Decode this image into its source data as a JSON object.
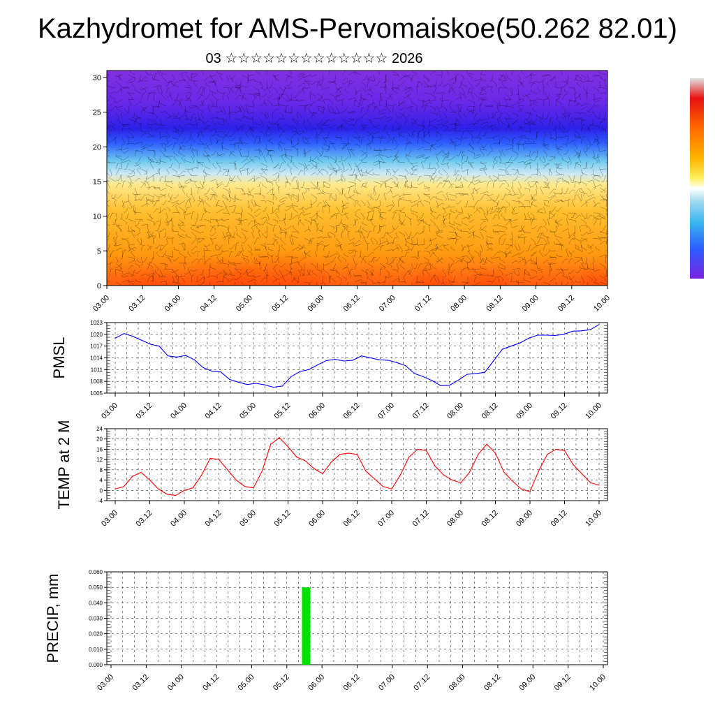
{
  "header": {
    "title": "Kazhydromet for AMS-Pervomaiskoe(50.262 82.01)",
    "subtitle": "03 ☆☆☆☆☆☆☆☆☆☆☆☆☆ 2026"
  },
  "colors": {
    "pmsl_line": "#0000ff",
    "temp_line": "#ff0000",
    "precip_bar": "#00e000",
    "colorbar": [
      "#e0e0e0",
      "#e81010",
      "#ff6a00",
      "#ffb400",
      "#ffe050",
      "#ffffff",
      "#9ad8f0",
      "#3ab4f0",
      "#2a60ff",
      "#3c1ce0",
      "#7a20e0"
    ]
  },
  "x_tick_labels": [
    "03.00",
    "03.12",
    "04.00",
    "04.12",
    "05.00",
    "05.12",
    "06.00",
    "06.12",
    "07.00",
    "07.12",
    "08.00",
    "08.12",
    "09.00",
    "09.12",
    "10.00"
  ],
  "chart_data": [
    {
      "type": "heatmap",
      "title": "",
      "xlabel": "",
      "ylabel": "",
      "x_categories": [
        "03.00",
        "03.12",
        "04.00",
        "04.12",
        "05.00",
        "05.12",
        "06.00",
        "06.12",
        "07.00",
        "07.12",
        "08.00",
        "08.12",
        "09.00",
        "09.12",
        "10.00"
      ],
      "yticks": [
        0,
        5,
        10,
        15,
        20,
        25,
        30
      ],
      "ylim": [
        0,
        31
      ],
      "description_hint": "shaded cross-section with wind barbs"
    },
    {
      "type": "line",
      "ylabel": "PMSL",
      "yticks": [
        1005,
        1008,
        1011,
        1014,
        1017,
        1020,
        1023
      ],
      "ylim": [
        1005,
        1023
      ],
      "series": [
        {
          "values": [
            1019,
            1020.2,
            1019.5,
            1018.5,
            1017.5,
            1017,
            1014.5,
            1014.2,
            1014.6,
            1013.5,
            1011.5,
            1010.6,
            1010.4,
            1008.5,
            1007.8,
            1007.2,
            1007.5,
            1007.1,
            1006.5,
            1006.8,
            1009.2,
            1010.5,
            1011,
            1012.2,
            1013.3,
            1013.6,
            1013.2,
            1013.4,
            1014.5,
            1014,
            1013.5,
            1013.4,
            1012.8,
            1012,
            1010,
            1009.2,
            1008.2,
            1006.9,
            1007,
            1008.3,
            1009.8,
            1010,
            1010.3,
            1013.2,
            1016.2,
            1017,
            1017.8,
            1019,
            1019.8,
            1019.8,
            1019.7,
            1020,
            1020.8,
            1020.9,
            1021.2,
            1022.5
          ]
        }
      ]
    },
    {
      "type": "line",
      "ylabel": "TEMP at 2 M",
      "yticks": [
        -4,
        0,
        4,
        8,
        12,
        16,
        20,
        24
      ],
      "ylim": [
        -4,
        24
      ],
      "series": [
        {
          "values": [
            0.5,
            1.5,
            5.5,
            7,
            4,
            0.5,
            -1.5,
            -2,
            0,
            1,
            6,
            12.5,
            12,
            8,
            4,
            1.5,
            1,
            7.5,
            18,
            20.5,
            17,
            13,
            11.5,
            8.5,
            6.5,
            11,
            14,
            14.5,
            14,
            7.5,
            4.5,
            1.5,
            0.5,
            6,
            13,
            16,
            15.5,
            9.5,
            6,
            4,
            3,
            7,
            14,
            18,
            14.5,
            7,
            3.5,
            0.5,
            -0.5,
            7.5,
            14,
            16,
            15.5,
            10,
            6.5,
            3,
            2
          ]
        }
      ]
    },
    {
      "type": "bar",
      "ylabel": "PRECIP, mm",
      "yticks": [
        0.0,
        0.01,
        0.02,
        0.03,
        0.04,
        0.05,
        0.06
      ],
      "ytick_labels": [
        "0.000",
        "0.010",
        "0.020",
        "0.030",
        "0.040",
        "0.050",
        "0.060"
      ],
      "ylim": [
        0,
        0.06
      ],
      "bars": [
        {
          "x_category_index": 5.55,
          "value": 0.05
        }
      ]
    }
  ]
}
